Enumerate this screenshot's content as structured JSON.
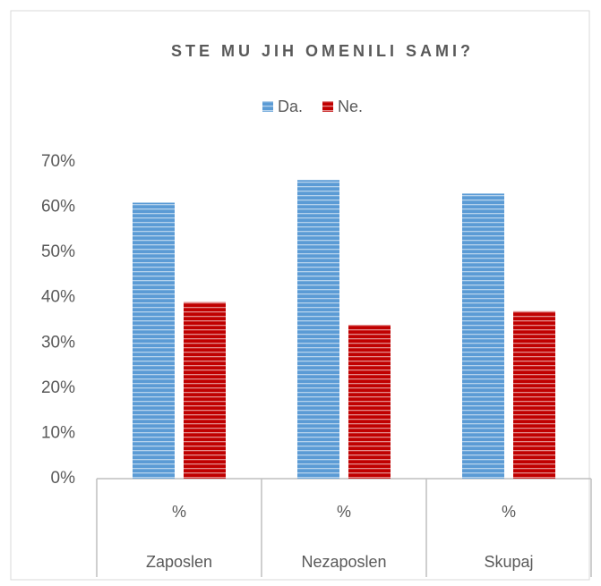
{
  "chart_data": {
    "type": "bar",
    "title": "STE MU JIH OMENILI SAMI?",
    "categories": [
      "%",
      "%",
      "%"
    ],
    "groups": [
      "Zaposlen",
      "Nezaposlen",
      "Skupaj"
    ],
    "series": [
      {
        "name": "Da.",
        "color": "#5b9bd5",
        "values": [
          61,
          66,
          63
        ]
      },
      {
        "name": "Ne.",
        "color": "#c00000",
        "values": [
          39,
          34,
          37
        ]
      }
    ],
    "ylim": [
      0,
      70
    ],
    "yticks": [
      {
        "value": 0,
        "label": "0%"
      },
      {
        "value": 10,
        "label": "10%"
      },
      {
        "value": 20,
        "label": "20%"
      },
      {
        "value": 30,
        "label": "30%"
      },
      {
        "value": 40,
        "label": "40%"
      },
      {
        "value": 50,
        "label": "50%"
      },
      {
        "value": 60,
        "label": "60%"
      },
      {
        "value": 70,
        "label": "70%"
      }
    ],
    "grid": false,
    "legend": "top"
  }
}
